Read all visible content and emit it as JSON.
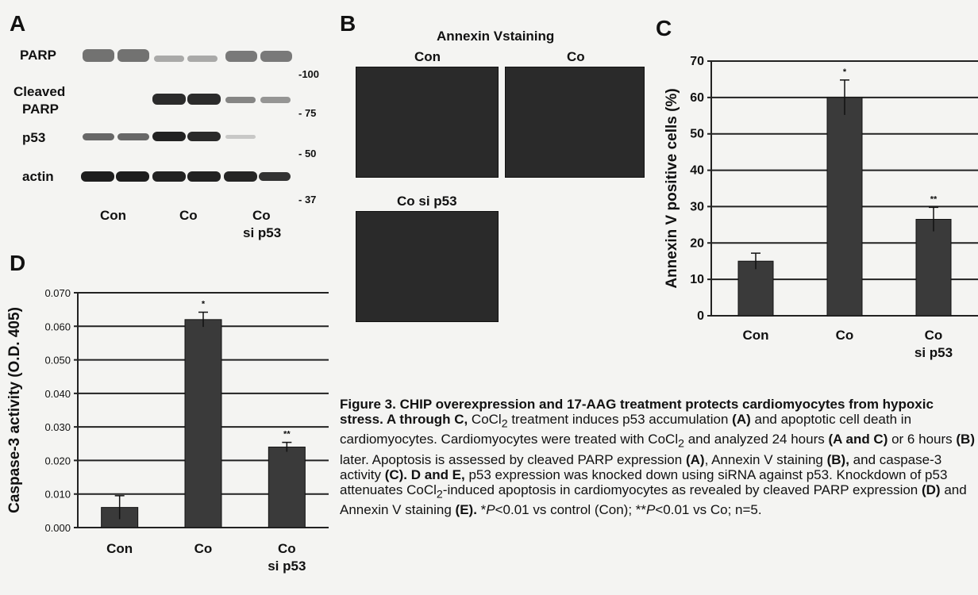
{
  "panels": {
    "a": {
      "letter": "A",
      "row_labels": {
        "parp": "PARP",
        "cleaved_line1": "Cleaved",
        "cleaved_line2": "PARP",
        "p53": "p53",
        "actin": "actin"
      },
      "mw_markers": [
        "-100",
        "- 75",
        "- 50",
        "- 37"
      ],
      "lanes": {
        "con": "Con",
        "co": "Co",
        "co_si_line1": "Co",
        "co_si_line2": "si p53"
      }
    },
    "b": {
      "letter": "B",
      "title": "Annexin Vstaining",
      "con": "Con",
      "co": "Co",
      "co_si_p53": "Co si p53"
    },
    "c": {
      "letter": "C"
    },
    "d": {
      "letter": "D"
    }
  },
  "caption": {
    "bold_intro": "Figure 3. CHIP overexpression and 17-AAG treatment protects cardiomyocytes from hypoxic stress. A through C,",
    "part1": " CoCl",
    "sub2": "2",
    "part2": " treatment induces p53 accumulation ",
    "ref_a": "(A)",
    "part3": " and apoptotic cell death in cardiomyocytes. Cardiomyocytes were treated with CoCl",
    "part4": " and analyzed 24 hours ",
    "ref_ac": "(A and C)",
    "part5": " or 6 hours ",
    "ref_b": "(B)",
    "part6": " later. Apoptosis is assessed by cleaved PARP expression ",
    "ref_a2": "(A)",
    "part7": ", Annexin V staining ",
    "ref_b2": "(B),",
    "part8": " and caspase-3 activity ",
    "ref_c": "(C).",
    "ref_de": " D and E,",
    "part9": " p53 expression was knocked down using siRNA against p53. Knockdown of p53 attenuates CoCl",
    "part10": "-induced apoptosis in cardiomyocytes as revealed by cleaved PARP expression ",
    "ref_d": "(D)",
    "part11": " and Annexin V staining ",
    "ref_e": "(E).",
    "part12": " *",
    "p_it": "P",
    "part13": "<0.01 vs control (Con); **",
    "part14": "<0.01 vs Co; n=5."
  },
  "chart_data": [
    {
      "id": "C",
      "type": "bar",
      "categories": [
        "Con",
        "Co",
        "Co\nsi p53"
      ],
      "category_lines": [
        [
          "Con"
        ],
        [
          "Co"
        ],
        [
          "Co",
          "si p53"
        ]
      ],
      "values": [
        15,
        60,
        26.5
      ],
      "errors": [
        2.2,
        4.8,
        3.3
      ],
      "significance": [
        "",
        "*",
        "**"
      ],
      "ylabel": "Annexin V positive cells (%)",
      "ylim": [
        0,
        70
      ],
      "yticks": [
        "0",
        "10",
        "20",
        "30",
        "40",
        "50",
        "60",
        "70"
      ],
      "grid": true,
      "bar_color": "#3a3a3a"
    },
    {
      "id": "D",
      "type": "bar",
      "categories": [
        "Con",
        "Co",
        "Co\nsi p53"
      ],
      "category_lines": [
        [
          "Con"
        ],
        [
          "Co"
        ],
        [
          "Co",
          "si p53"
        ]
      ],
      "values": [
        0.006,
        0.062,
        0.024
      ],
      "errors": [
        0.0035,
        0.0022,
        0.0014
      ],
      "significance": [
        "",
        "*",
        "**"
      ],
      "ylabel": "Caspase-3 activity (O.D. 405)",
      "ylim": [
        0,
        0.07
      ],
      "yticks": [
        "0.000",
        "0.010",
        "0.020",
        "0.030",
        "0.040",
        "0.050",
        "0.060",
        "0.070"
      ],
      "grid": true,
      "bar_color": "#3a3a3a"
    }
  ]
}
